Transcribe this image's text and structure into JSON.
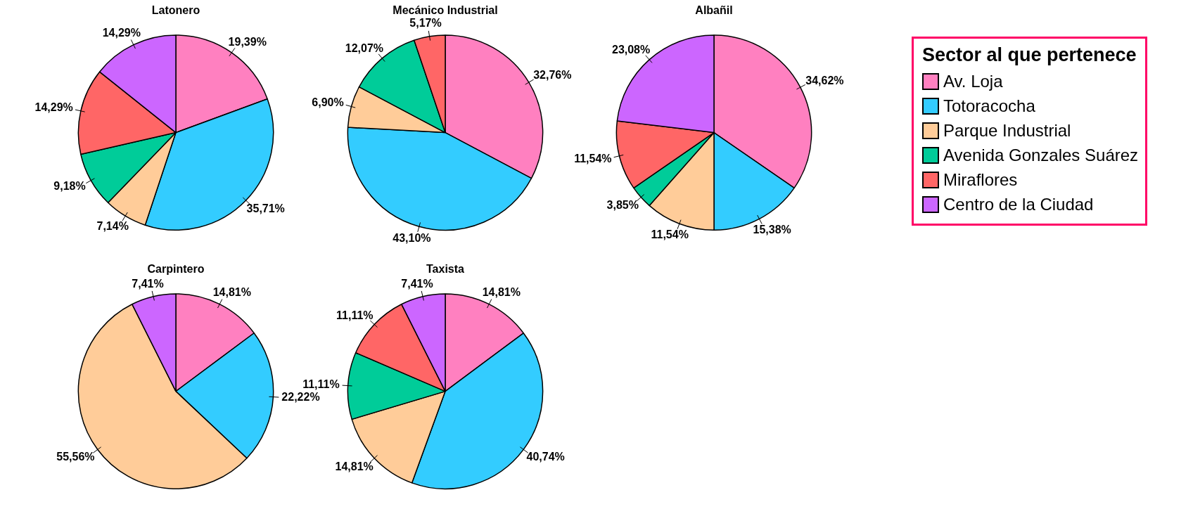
{
  "chart_data": [
    {
      "type": "pie",
      "title": "Latonero",
      "categories": [
        "Av. Loja",
        "Totoracocha",
        "Parque Industrial",
        "Avenida Gonzales Suárez",
        "Miraflores",
        "Centro de la Ciudad"
      ],
      "values": [
        19.39,
        35.71,
        7.14,
        9.18,
        14.29,
        14.29
      ],
      "value_labels": [
        "19,39%",
        "35,71%",
        "7,14%",
        "9,18%",
        "14,29%",
        "14,29%"
      ],
      "colors": [
        "#ff80c0",
        "#33ccff",
        "#ffcc99",
        "#00cc99",
        "#ff6666",
        "#cc66ff"
      ],
      "legend": "right",
      "legend_title": "Sector al que pertenece"
    },
    {
      "type": "pie",
      "title": "Mecánico Industrial",
      "categories": [
        null,
        null,
        null,
        null,
        null,
        null
      ],
      "values": [
        32.76,
        43.1,
        6.9,
        12.07,
        5.17,
        0
      ],
      "value_labels": [
        "32,76%",
        "43,10%",
        "6,90%",
        "12,07%",
        "5,17%",
        null
      ],
      "colors": [
        "#ff80c0",
        "#33ccff",
        "#ffcc99",
        "#00cc99",
        "#ff6666",
        "#cc66ff"
      ]
    },
    {
      "type": "pie",
      "title": "Albañil",
      "categories": [
        null,
        null,
        null,
        null,
        null,
        null
      ],
      "values": [
        34.62,
        15.38,
        11.54,
        3.85,
        11.54,
        23.08
      ],
      "value_labels": [
        "34,62%",
        "15,38%",
        "11,54%",
        "3,85%",
        "11,54%",
        "23,08%"
      ],
      "colors": [
        "#ff80c0",
        "#33ccff",
        "#ffcc99",
        "#00cc99",
        "#ff6666",
        "#cc66ff"
      ]
    },
    {
      "type": "pie",
      "title": "Carpintero",
      "categories": [
        null,
        null,
        null,
        null,
        null,
        null
      ],
      "values": [
        14.81,
        22.22,
        55.56,
        0,
        0,
        7.41
      ],
      "value_labels": [
        "14,81%",
        "22,22%",
        "55,56%",
        null,
        null,
        "7,41%"
      ],
      "colors": [
        "#ff80c0",
        "#33ccff",
        "#ffcc99",
        "#00cc99",
        "#ff6666",
        "#cc66ff"
      ]
    },
    {
      "type": "pie",
      "title": "Taxista",
      "categories": [
        null,
        null,
        null,
        null,
        null,
        null
      ],
      "values": [
        14.81,
        40.74,
        14.81,
        11.11,
        11.11,
        7.41
      ],
      "value_labels": [
        "14,81%",
        "40,74%",
        "14,81%",
        "11,11%",
        "11,11%",
        "7,41%"
      ],
      "colors": [
        "#ff80c0",
        "#33ccff",
        "#ffcc99",
        "#00cc99",
        "#ff6666",
        "#cc66ff"
      ]
    }
  ]
}
